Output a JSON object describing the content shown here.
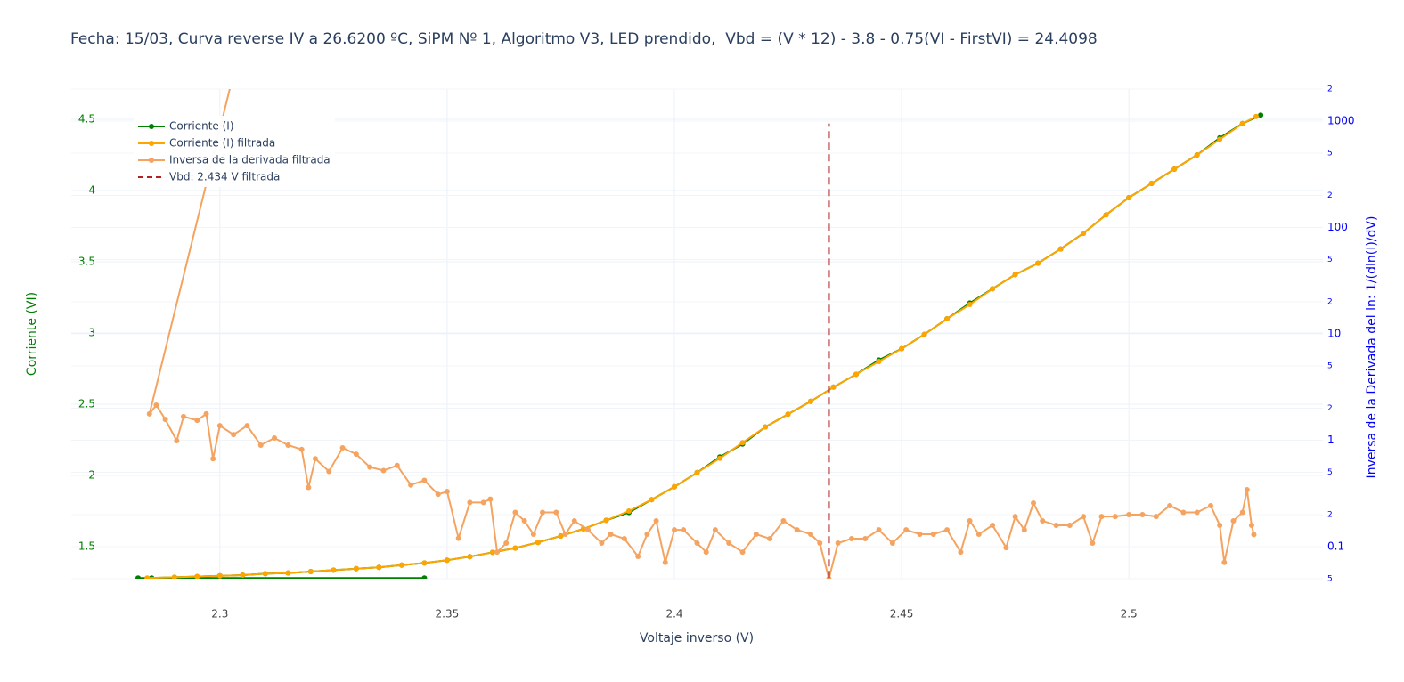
{
  "chart_data": {
    "type": "line",
    "title": "Fecha: 15/03, Curva reverse IV a 26.6200 ºC, SiPM Nº 1, Algoritmo V3, LED prendido,  Vbd = (V * 12) - 3.8 - 0.75(VI - FirstVI) = 24.4098",
    "x_label": "Voltaje inverso (V)",
    "y_label": "Corriente (VI)",
    "y2_label": "Inversa de la Derivada del ln: 1/(dln(I)/dV)",
    "xlim": [
      2.2673,
      2.5427
    ],
    "xticks": [
      2.3,
      2.35,
      2.4,
      2.45,
      2.5
    ],
    "ylim": [
      1.275,
      4.7125
    ],
    "yticks": [
      1.5,
      2,
      2.5,
      3,
      3.5,
      4,
      4.5
    ],
    "y2lim": [
      0.05,
      2000
    ],
    "y2_log": true,
    "y2ticks": [
      {
        "value": 2000,
        "label": "2"
      },
      1000,
      {
        "value": 500,
        "label": "5"
      },
      {
        "value": 200,
        "label": "2"
      },
      100,
      {
        "value": 50,
        "label": "5"
      },
      {
        "value": 20,
        "label": "2"
      },
      10,
      5,
      2,
      1,
      {
        "value": 0.5,
        "label": "5"
      },
      {
        "value": 0.2,
        "label": "2"
      },
      0.1,
      {
        "value": 0.05,
        "label": "5"
      }
    ],
    "grid": true,
    "legend": "top-left",
    "series": [
      {
        "name": "Corriente (I)",
        "color": "#008000",
        "axis": "y",
        "mode": "lines+markers",
        "x": [
          2.345,
          2.282,
          2.285,
          2.29,
          2.295,
          2.3,
          2.305,
          2.31,
          2.315,
          2.32,
          2.325,
          2.33,
          2.335,
          2.34,
          2.345,
          2.35,
          2.355,
          2.36,
          2.365,
          2.37,
          2.375,
          2.38,
          2.385,
          2.39,
          2.395,
          2.4,
          2.405,
          2.41,
          2.415,
          2.42,
          2.425,
          2.43,
          2.435,
          2.44,
          2.445,
          2.45,
          2.455,
          2.46,
          2.465,
          2.47,
          2.475,
          2.48,
          2.485,
          2.49,
          2.495,
          2.5,
          2.505,
          2.51,
          2.515,
          2.52,
          2.525,
          2.529
        ],
        "values": [
          1.28,
          1.28,
          1.28,
          1.285,
          1.29,
          1.295,
          1.3,
          1.31,
          1.315,
          1.325,
          1.335,
          1.345,
          1.355,
          1.37,
          1.385,
          1.405,
          1.43,
          1.46,
          1.49,
          1.53,
          1.575,
          1.625,
          1.685,
          1.74,
          1.83,
          1.92,
          2.02,
          2.13,
          2.22,
          2.34,
          2.43,
          2.52,
          2.62,
          2.71,
          2.81,
          2.89,
          2.99,
          3.1,
          3.21,
          3.31,
          3.41,
          3.49,
          3.59,
          3.7,
          3.83,
          3.95,
          4.05,
          4.15,
          4.25,
          4.37,
          4.47,
          4.53
        ]
      },
      {
        "name": "Corriente (I) filtrada",
        "color": "#ffa500",
        "axis": "y",
        "mode": "lines+markers",
        "x": [
          2.284,
          2.29,
          2.295,
          2.3,
          2.305,
          2.31,
          2.315,
          2.32,
          2.325,
          2.33,
          2.335,
          2.34,
          2.345,
          2.35,
          2.355,
          2.36,
          2.365,
          2.37,
          2.375,
          2.38,
          2.385,
          2.39,
          2.395,
          2.4,
          2.405,
          2.41,
          2.415,
          2.42,
          2.425,
          2.43,
          2.435,
          2.44,
          2.445,
          2.45,
          2.455,
          2.46,
          2.465,
          2.47,
          2.475,
          2.48,
          2.485,
          2.49,
          2.495,
          2.5,
          2.505,
          2.51,
          2.515,
          2.52,
          2.525,
          2.528
        ],
        "values": [
          1.28,
          1.285,
          1.29,
          1.295,
          1.3,
          1.31,
          1.315,
          1.325,
          1.335,
          1.345,
          1.355,
          1.37,
          1.385,
          1.405,
          1.43,
          1.46,
          1.49,
          1.53,
          1.575,
          1.625,
          1.685,
          1.75,
          1.83,
          1.92,
          2.02,
          2.12,
          2.23,
          2.34,
          2.43,
          2.52,
          2.62,
          2.71,
          2.8,
          2.89,
          2.99,
          3.1,
          3.2,
          3.31,
          3.41,
          3.49,
          3.59,
          3.7,
          3.83,
          3.95,
          4.05,
          4.15,
          4.25,
          4.36,
          4.47,
          4.52
        ]
      },
      {
        "name": "Inversa de la derivada filtrada",
        "color": "#f4a460",
        "axis": "y2",
        "mode": "lines+markers",
        "x": [
          2.312,
          2.2845,
          2.286,
          2.288,
          2.2905,
          2.292,
          2.295,
          2.297,
          2.2985,
          2.3,
          2.303,
          2.306,
          2.309,
          2.312,
          2.315,
          2.318,
          2.3195,
          2.321,
          2.324,
          2.327,
          2.33,
          2.333,
          2.336,
          2.339,
          2.342,
          2.345,
          2.348,
          2.35,
          2.3525,
          2.355,
          2.358,
          2.3595,
          2.361,
          2.363,
          2.365,
          2.367,
          2.369,
          2.371,
          2.374,
          2.376,
          2.378,
          2.381,
          2.384,
          2.386,
          2.389,
          2.392,
          2.394,
          2.396,
          2.398,
          2.4,
          2.402,
          2.405,
          2.407,
          2.409,
          2.412,
          2.415,
          2.418,
          2.421,
          2.424,
          2.427,
          2.43,
          2.432,
          2.434,
          2.436,
          2.439,
          2.442,
          2.445,
          2.448,
          2.451,
          2.454,
          2.457,
          2.46,
          2.463,
          2.465,
          2.467,
          2.47,
          2.473,
          2.475,
          2.477,
          2.479,
          2.481,
          2.484,
          2.487,
          2.49,
          2.492,
          2.494,
          2.497,
          2.5,
          2.503,
          2.506,
          2.509,
          2.512,
          2.515,
          2.518,
          2.52,
          2.521,
          2.523,
          2.525,
          2.526,
          2.527,
          2.5275
        ],
        "values": [
          100000,
          1.77,
          2.14,
          1.57,
          0.99,
          1.67,
          1.54,
          1.77,
          0.67,
          1.37,
          1.13,
          1.37,
          0.9,
          1.05,
          0.9,
          0.82,
          0.36,
          0.67,
          0.51,
          0.85,
          0.74,
          0.56,
          0.52,
          0.58,
          0.38,
          0.42,
          0.31,
          0.33,
          0.12,
          0.26,
          0.26,
          0.28,
          0.089,
          0.108,
          0.21,
          0.175,
          0.131,
          0.21,
          0.21,
          0.131,
          0.175,
          0.144,
          0.108,
          0.131,
          0.119,
          0.081,
          0.131,
          0.175,
          0.071,
          0.144,
          0.144,
          0.108,
          0.089,
          0.144,
          0.108,
          0.089,
          0.131,
          0.119,
          0.175,
          0.144,
          0.131,
          0.108,
          0.05,
          0.108,
          0.119,
          0.119,
          0.144,
          0.108,
          0.144,
          0.131,
          0.131,
          0.144,
          0.089,
          0.175,
          0.131,
          0.159,
          0.098,
          0.192,
          0.144,
          0.257,
          0.175,
          0.159,
          0.159,
          0.192,
          0.108,
          0.192,
          0.192,
          0.2,
          0.2,
          0.192,
          0.243,
          0.21,
          0.21,
          0.243,
          0.159,
          0.071,
          0.175,
          0.21,
          0.343,
          0.159,
          0.13
        ]
      },
      {
        "name": "Vbd: 2.434 V filtrada",
        "color": "#b22222",
        "axis": "y",
        "mode": "lines",
        "dash": true,
        "x": [
          2.434,
          2.434
        ],
        "values": [
          1.28,
          4.47
        ]
      }
    ]
  }
}
